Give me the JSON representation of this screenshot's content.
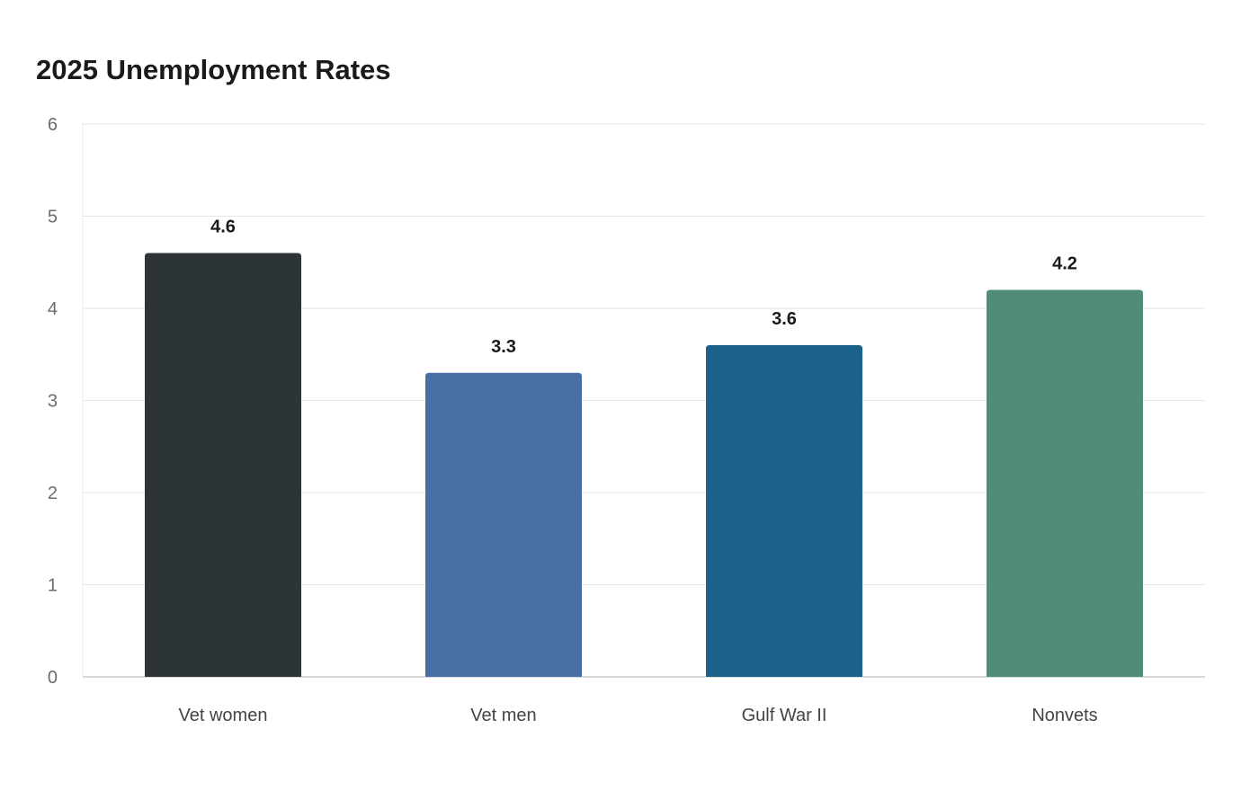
{
  "chart_data": {
    "type": "bar",
    "title": "2025 Unemployment Rates",
    "xlabel": "",
    "ylabel": "",
    "categories": [
      "Vet women",
      "Vet men",
      "Gulf War II",
      "Nonvets"
    ],
    "values": [
      4.6,
      3.3,
      3.6,
      4.2
    ],
    "data_labels": [
      "4.6",
      "3.3",
      "3.6",
      "4.2"
    ],
    "colors": [
      "#2d3436",
      "#4a6fa5",
      "#1a6289",
      "#4f8c7a"
    ],
    "ylim": [
      0,
      6
    ],
    "yticks": [
      0,
      1,
      2,
      3,
      4,
      5,
      6
    ],
    "ytick_labels": [
      "0",
      "1",
      "2",
      "3",
      "4",
      "5",
      "6"
    ],
    "grid": true,
    "legend": "none"
  }
}
